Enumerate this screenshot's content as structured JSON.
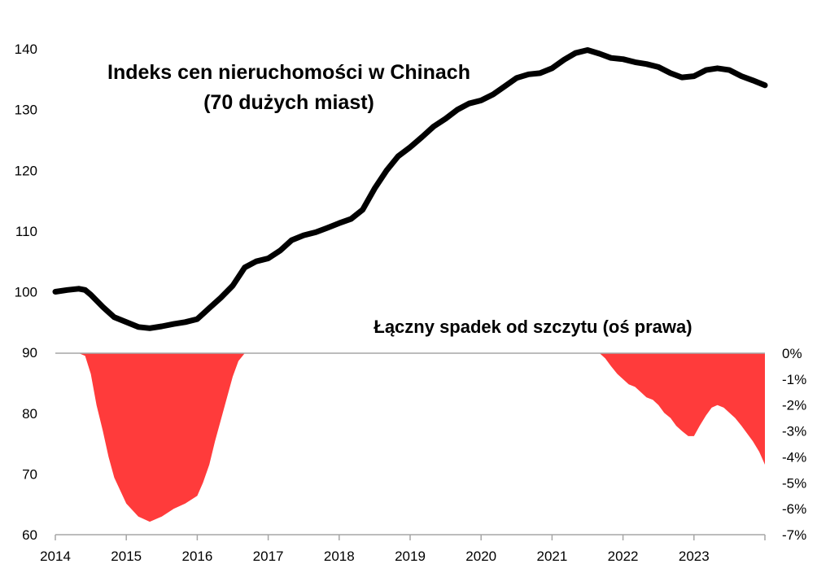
{
  "chart_data": {
    "type": "line",
    "title": "Indeks cen nieruchomości w Chinach",
    "subtitle": "(70 dużych miast)",
    "series": [
      {
        "kind": "line",
        "axis": "left",
        "color": "#000000",
        "x": [
          2014.0,
          2014.17,
          2014.33,
          2014.42,
          2014.5,
          2014.67,
          2014.83,
          2015.0,
          2015.17,
          2015.33,
          2015.5,
          2015.67,
          2015.83,
          2016.0,
          2016.17,
          2016.33,
          2016.5,
          2016.67,
          2016.83,
          2017.0,
          2017.17,
          2017.33,
          2017.5,
          2017.67,
          2017.83,
          2018.0,
          2018.17,
          2018.33,
          2018.5,
          2018.67,
          2018.83,
          2019.0,
          2019.17,
          2019.33,
          2019.5,
          2019.67,
          2019.83,
          2020.0,
          2020.17,
          2020.33,
          2020.5,
          2020.67,
          2020.83,
          2021.0,
          2021.17,
          2021.33,
          2021.5,
          2021.67,
          2021.83,
          2022.0,
          2022.17,
          2022.33,
          2022.5,
          2022.67,
          2022.83,
          2023.0,
          2023.17,
          2023.33,
          2023.5,
          2023.67,
          2023.83,
          2024.0
        ],
        "values": [
          100.0,
          100.3,
          100.5,
          100.3,
          99.5,
          97.5,
          95.8,
          95.0,
          94.2,
          94.0,
          94.3,
          94.7,
          95.0,
          95.5,
          97.3,
          99.0,
          101.0,
          104.0,
          105.0,
          105.5,
          106.8,
          108.5,
          109.3,
          109.8,
          110.5,
          111.3,
          112.0,
          113.5,
          117.0,
          120.0,
          122.3,
          123.8,
          125.5,
          127.2,
          128.5,
          130.0,
          131.0,
          131.5,
          132.5,
          133.8,
          135.2,
          135.8,
          136.0,
          136.8,
          138.2,
          139.3,
          139.8,
          139.2,
          138.5,
          138.3,
          137.8,
          137.5,
          137.0,
          136.0,
          135.3,
          135.5,
          136.5,
          136.8,
          136.5,
          135.5,
          134.8,
          134.0
        ]
      },
      {
        "name": "Łączny spadek od szczytu (oś prawa)",
        "kind": "area",
        "axis": "right",
        "color": "#ff3b3b",
        "x": [
          2014.0,
          2014.33,
          2014.42,
          2014.5,
          2014.58,
          2014.67,
          2014.75,
          2014.83,
          2015.0,
          2015.17,
          2015.33,
          2015.5,
          2015.67,
          2015.83,
          2016.0,
          2016.08,
          2016.17,
          2016.25,
          2016.33,
          2016.42,
          2016.5,
          2016.58,
          2016.67,
          2021.67,
          2021.75,
          2021.83,
          2021.92,
          2022.0,
          2022.08,
          2022.17,
          2022.25,
          2022.33,
          2022.42,
          2022.5,
          2022.58,
          2022.67,
          2022.75,
          2022.83,
          2022.92,
          2023.0,
          2023.08,
          2023.17,
          2023.25,
          2023.33,
          2023.42,
          2023.5,
          2023.58,
          2023.67,
          2023.75,
          2023.83,
          2023.92,
          2024.0
        ],
        "values": [
          0.0,
          0.0,
          -0.1,
          -0.8,
          -2.0,
          -3.0,
          -4.0,
          -4.8,
          -5.8,
          -6.3,
          -6.5,
          -6.3,
          -6.0,
          -5.8,
          -5.5,
          -5.0,
          -4.3,
          -3.4,
          -2.6,
          -1.7,
          -0.9,
          -0.3,
          0.0,
          0.0,
          -0.2,
          -0.5,
          -0.8,
          -1.0,
          -1.2,
          -1.3,
          -1.5,
          -1.7,
          -1.8,
          -2.0,
          -2.3,
          -2.5,
          -2.8,
          -3.0,
          -3.2,
          -3.2,
          -2.8,
          -2.4,
          -2.1,
          -2.0,
          -2.1,
          -2.3,
          -2.5,
          -2.8,
          -3.1,
          -3.4,
          -3.8,
          -4.3
        ]
      }
    ],
    "x_ticks": [
      "2014",
      "2015",
      "2016",
      "2017",
      "2018",
      "2019",
      "2020",
      "2021",
      "2022",
      "2023"
    ],
    "y_left": {
      "min": 60,
      "max": 140,
      "ticks": [
        "60",
        "70",
        "80",
        "90",
        "100",
        "110",
        "120",
        "130",
        "140"
      ]
    },
    "y_right": {
      "min": -7,
      "max": 0,
      "ticks": [
        "0%",
        "-1%",
        "-2%",
        "-3%",
        "-4%",
        "-5%",
        "-6%",
        "-7%"
      ]
    },
    "grid": false,
    "legend": "none"
  }
}
